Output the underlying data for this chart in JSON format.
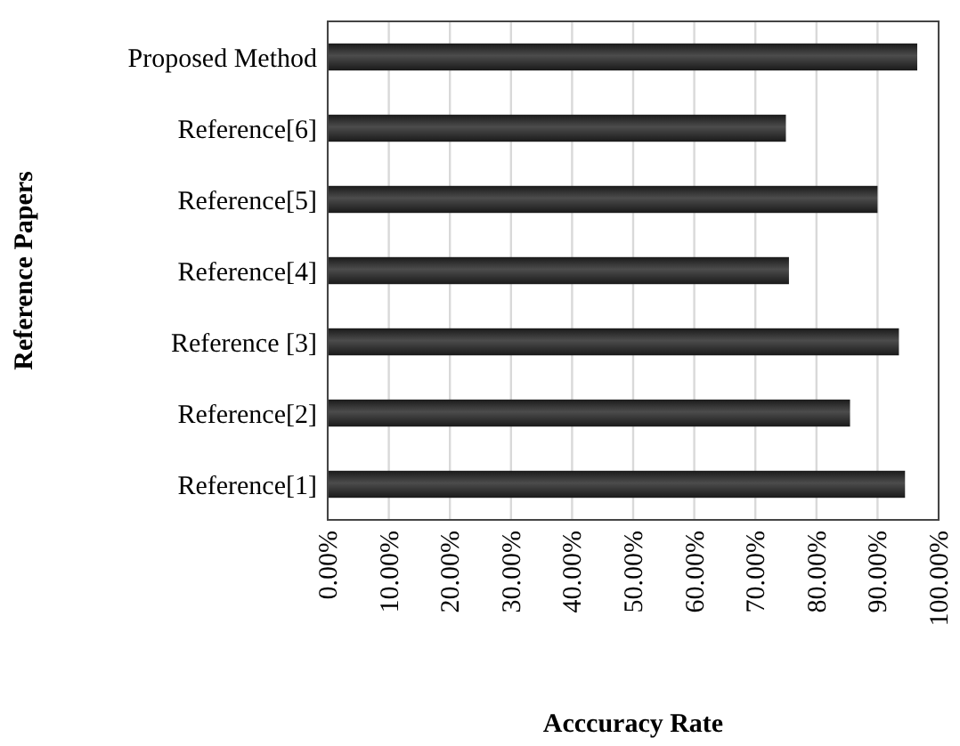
{
  "chart_data": {
    "type": "bar",
    "orientation": "horizontal",
    "xlabel": "Acccuracy Rate",
    "ylabel": "Reference Papers",
    "categories": [
      "Proposed Method",
      "Reference[6]",
      "Reference[5]",
      "Reference[4]",
      "Reference [3]",
      "Reference[2]",
      "Reference[1]"
    ],
    "values": [
      96.5,
      75,
      90,
      75.5,
      93.5,
      85.5,
      94.5
    ],
    "color": "#1a1a1a",
    "xlim": [
      0,
      100
    ],
    "xticks": [
      {
        "value": 0,
        "label": "0.00%"
      },
      {
        "value": 10,
        "label": "10.00%"
      },
      {
        "value": 20,
        "label": "20.00%"
      },
      {
        "value": 30,
        "label": "30.00%"
      },
      {
        "value": 40,
        "label": "40.00%"
      },
      {
        "value": 50,
        "label": "50.00%"
      },
      {
        "value": 60,
        "label": "60.00%"
      },
      {
        "value": 70,
        "label": "70.00%"
      },
      {
        "value": 80,
        "label": "80.00%"
      },
      {
        "value": 90,
        "label": "90.00%"
      },
      {
        "value": 100,
        "label": "100.00%"
      }
    ],
    "grid": "x"
  }
}
